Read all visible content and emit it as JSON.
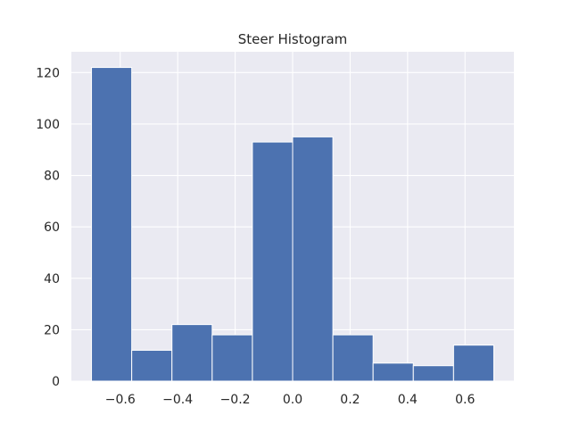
{
  "chart_data": {
    "type": "bar",
    "title": "Steer Histogram",
    "xlabel": "",
    "ylabel": "",
    "bins": [
      {
        "x0": -0.7,
        "x1": -0.56,
        "count": 122
      },
      {
        "x0": -0.56,
        "x1": -0.42,
        "count": 12
      },
      {
        "x0": -0.42,
        "x1": -0.28,
        "count": 22
      },
      {
        "x0": -0.28,
        "x1": -0.14,
        "count": 18
      },
      {
        "x0": -0.14,
        "x1": 0.0,
        "count": 93
      },
      {
        "x0": 0.0,
        "x1": 0.14,
        "count": 95
      },
      {
        "x0": 0.14,
        "x1": 0.28,
        "count": 18
      },
      {
        "x0": 0.28,
        "x1": 0.42,
        "count": 7
      },
      {
        "x0": 0.42,
        "x1": 0.56,
        "count": 6
      },
      {
        "x0": 0.56,
        "x1": 0.7,
        "count": 14
      }
    ],
    "xlim": [
      -0.77,
      0.77
    ],
    "ylim": [
      0,
      128.1
    ],
    "xticks": [
      -0.6,
      -0.4,
      -0.2,
      0.0,
      0.2,
      0.4,
      0.6
    ],
    "xtick_labels": [
      "−0.6",
      "−0.4",
      "−0.2",
      "0.0",
      "0.2",
      "0.4",
      "0.6"
    ],
    "yticks": [
      0,
      20,
      40,
      60,
      80,
      100,
      120
    ],
    "ytick_labels": [
      "0",
      "20",
      "40",
      "60",
      "80",
      "100",
      "120"
    ],
    "grid": true,
    "colors": {
      "bar": "#4c72b0",
      "bar_edge": "#ffffff",
      "plot_bg": "#eaeaf2",
      "grid": "#ffffff",
      "text": "#262626"
    }
  }
}
